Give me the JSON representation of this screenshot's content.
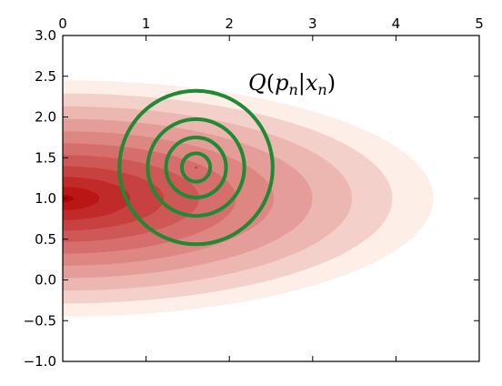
{
  "chart_data": {
    "type": "contour",
    "title": "",
    "xlabel": "",
    "ylabel": "",
    "xlim": [
      0,
      5
    ],
    "ylim": [
      -1.0,
      3.0
    ],
    "x_axis_position": "top",
    "x_ticks": [
      0,
      1,
      2,
      3,
      4,
      5
    ],
    "x_tick_labels": [
      "0",
      "1",
      "2",
      "3",
      "4",
      "5"
    ],
    "y_ticks": [
      3.0,
      2.5,
      2.0,
      1.5,
      1.0,
      0.5,
      0.0,
      -0.5,
      -1.0
    ],
    "y_tick_labels": [
      "3.0",
      "2.5",
      "2.0",
      "1.5",
      "1.0",
      "0.5",
      "0.0",
      "−0.5",
      "−1.0"
    ],
    "grid": false,
    "filled_contour": {
      "description_color": "Reds",
      "peak_center": [
        0.0,
        1.0
      ],
      "outer_extent_x": 4.45,
      "outer_extent_y": [
        -0.45,
        2.45
      ],
      "levels": 11,
      "color_low": "#fdeee8",
      "color_high": "#b30000"
    },
    "circles": {
      "color": "#1e8a33",
      "center": [
        1.6,
        1.38
      ],
      "radii": [
        0.92,
        0.58,
        0.36,
        0.17
      ]
    },
    "center_marker": [
      1.6,
      1.38
    ],
    "annotations": [
      {
        "text": "Q(p_n|x_n)",
        "x": 2.25,
        "y": 2.35
      }
    ]
  },
  "annotation_main": "Q",
  "annotation_open": "(",
  "annotation_p": "p",
  "annotation_n1": "n",
  "annotation_bar": "|",
  "annotation_x": "x",
  "annotation_n2": "n",
  "annotation_close": ")"
}
